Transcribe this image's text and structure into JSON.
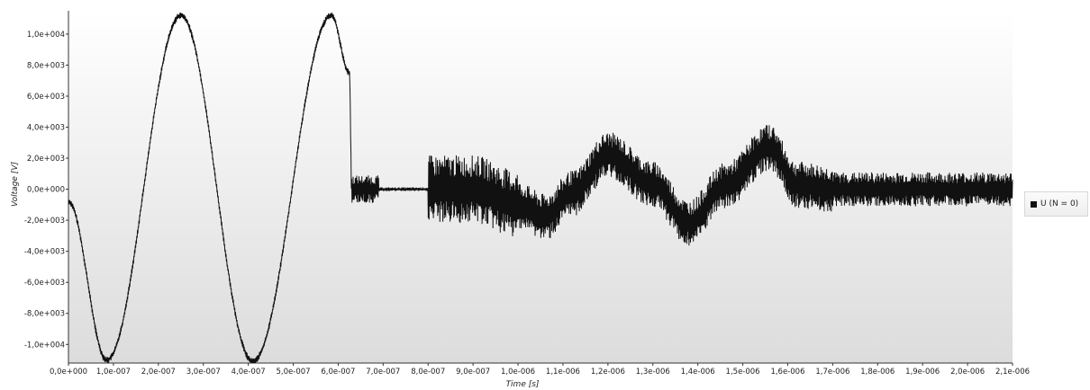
{
  "chart_data": {
    "type": "line",
    "xlabel": "Time [s]",
    "ylabel": "Voltage [V]",
    "xlim": [
      0,
      2.1e-06
    ],
    "ylim": [
      -11200,
      11500
    ],
    "x_ticks": [
      0,
      1e-07,
      2e-07,
      3e-07,
      4e-07,
      5e-07,
      6e-07,
      7e-07,
      8e-07,
      9e-07,
      1e-06,
      1.1e-06,
      1.2e-06,
      1.3e-06,
      1.4e-06,
      1.5e-06,
      1.6e-06,
      1.7e-06,
      1.8e-06,
      1.9e-06,
      2e-06,
      2.1e-06
    ],
    "x_tick_labels": [
      "0,0e+000",
      "1,0e-007",
      "2,0e-007",
      "3,0e-007",
      "4,0e-007",
      "5,0e-007",
      "6,0e-007",
      "7,0e-007",
      "8,0e-007",
      "9,0e-007",
      "1,0e-006",
      "1,1e-006",
      "1,2e-006",
      "1,3e-006",
      "1,4e-006",
      "1,5e-006",
      "1,6e-006",
      "1,7e-006",
      "1,8e-006",
      "1,9e-006",
      "2,0e-006",
      "2,1e-006"
    ],
    "y_ticks": [
      10000,
      8000,
      6000,
      4000,
      2000,
      0,
      -2000,
      -4000,
      -6000,
      -8000,
      -10000
    ],
    "y_tick_labels": [
      "1,0e+004",
      "8,0e+003",
      "6,0e+003",
      "4,0e+003",
      "2,0e+003",
      "0,0e+000",
      "-2,0e+003",
      "-4,0e+003",
      "-6,0e+003",
      "-8,0e+003",
      "-1,0e+004"
    ],
    "legend_position": "right",
    "grid": false,
    "series": [
      {
        "name": "U (N = 0)",
        "color": "#111111",
        "x": [
          0,
          8.5e-08,
          2.5e-07,
          4.1e-07,
          5.85e-07,
          6.25e-07,
          6.3e-07,
          7.2e-07,
          8e-07,
          9e-07,
          1e-06,
          1.06e-06,
          1.12e-06,
          1.2e-06,
          1.3e-06,
          1.38e-06,
          1.46e-06,
          1.56e-06,
          1.62e-06,
          1.7e-06,
          2.1e-06
        ],
        "y": [
          -800,
          -11000,
          11200,
          -11100,
          11200,
          7500,
          0,
          0,
          0,
          0,
          -1000,
          -1800,
          -300,
          2200,
          300,
          -2200,
          200,
          2700,
          300,
          0,
          0
        ]
      }
    ]
  }
}
